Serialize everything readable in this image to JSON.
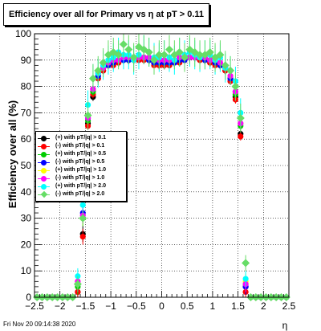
{
  "title": "Efficiency over all for Primary vs   η at pT > 0.11",
  "datestamp": "Fri Nov 20 09:14:38 2020",
  "colors": {
    "frame": "#000000",
    "grid": "#000000"
  },
  "chart_data": {
    "type": "scatter",
    "xlabel": "η",
    "ylabel": "Efficiency over all (%)",
    "xlim": [
      -2.5,
      2.5
    ],
    "ylim": [
      0,
      100
    ],
    "xticks": [
      -2.5,
      -2,
      -1.5,
      -1,
      -0.5,
      0,
      0.5,
      1,
      1.5,
      2,
      2.5
    ],
    "yticks": [
      0,
      10,
      20,
      30,
      40,
      50,
      60,
      70,
      80,
      90,
      100
    ],
    "xtick_labels": [
      "−2.5",
      "−2",
      "−1.5",
      "−1",
      "−0.5",
      "0",
      "0.5",
      "1",
      "1.5",
      "2",
      "2.5"
    ],
    "ytick_labels": [
      "0",
      "10",
      "20",
      "30",
      "40",
      "50",
      "60",
      "70",
      "80",
      "90",
      "100"
    ],
    "grid": true,
    "legend_position": "left-middle",
    "x": [
      -2.45,
      -2.35,
      -2.25,
      -2.15,
      -2.05,
      -1.95,
      -1.85,
      -1.75,
      -1.65,
      -1.55,
      -1.45,
      -1.35,
      -1.25,
      -1.15,
      -1.05,
      -0.95,
      -0.85,
      -0.75,
      -0.65,
      -0.55,
      -0.45,
      -0.35,
      -0.25,
      -0.15,
      -0.05,
      0.05,
      0.15,
      0.25,
      0.35,
      0.45,
      0.55,
      0.65,
      0.75,
      0.85,
      0.95,
      1.05,
      1.15,
      1.25,
      1.35,
      1.45,
      1.55,
      1.65,
      1.75,
      1.85,
      1.95,
      2.05,
      2.15,
      2.25,
      2.35,
      2.45
    ],
    "series": [
      {
        "name": "(+) with pT/|q| > 0.1",
        "color": "#000000",
        "marker": "circle",
        "values": [
          0,
          0,
          0,
          0,
          0,
          0,
          0,
          0,
          2,
          24,
          66,
          76,
          83,
          86,
          88,
          89,
          89,
          90,
          90,
          90,
          90,
          91,
          90,
          89,
          88,
          88,
          88,
          89,
          90,
          90,
          91,
          91,
          90,
          90,
          89,
          89,
          88,
          86,
          82,
          76,
          62,
          4,
          0,
          0,
          0,
          0,
          0,
          0,
          0,
          0
        ]
      },
      {
        "name": "(-) with pT/|q| > 0.1",
        "color": "#ff0000",
        "marker": "circle",
        "values": [
          0,
          0,
          0,
          0,
          0,
          0,
          0,
          0,
          2,
          23,
          65,
          77,
          83,
          86,
          88,
          88,
          89,
          90,
          90,
          91,
          90,
          90,
          90,
          88,
          88,
          88,
          88,
          89,
          89,
          90,
          91,
          91,
          90,
          90,
          89,
          88,
          88,
          86,
          82,
          75,
          61,
          2,
          0,
          0,
          0,
          0,
          0,
          0,
          0,
          0
        ]
      },
      {
        "name": "(+) with pT/|q| > 0.5",
        "color": "#00cc00",
        "marker": "circle",
        "values": [
          0,
          0,
          0,
          0,
          0,
          0,
          0,
          0,
          4,
          30,
          67,
          78,
          84,
          87,
          88,
          89,
          90,
          90,
          90,
          91,
          91,
          91,
          90,
          89,
          89,
          89,
          89,
          89,
          90,
          90,
          91,
          91,
          91,
          90,
          90,
          89,
          88,
          87,
          83,
          77,
          65,
          5,
          0,
          0,
          0,
          0,
          0,
          0,
          0,
          0
        ]
      },
      {
        "name": "(-) with pT/|q| > 0.5",
        "color": "#0000ff",
        "marker": "circle",
        "values": [
          0,
          0,
          0,
          0,
          0,
          0,
          0,
          0,
          5,
          32,
          68,
          79,
          84,
          87,
          88,
          89,
          90,
          90,
          90,
          91,
          91,
          91,
          90,
          89,
          89,
          89,
          89,
          89,
          90,
          90,
          91,
          91,
          91,
          90,
          90,
          89,
          88,
          87,
          83,
          78,
          66,
          4,
          0,
          0,
          0,
          0,
          0,
          0,
          0,
          0
        ]
      },
      {
        "name": "(+) with pT/|q| > 1.0",
        "color": "#ffff00",
        "marker": "circle",
        "values": [
          0,
          0,
          0,
          0,
          0,
          0,
          0,
          0,
          6,
          30,
          69,
          79,
          85,
          87,
          89,
          90,
          90,
          91,
          91,
          91,
          91,
          91,
          91,
          90,
          90,
          90,
          90,
          90,
          91,
          91,
          91,
          92,
          91,
          91,
          90,
          90,
          89,
          87,
          84,
          78,
          66,
          6,
          0,
          0,
          0,
          0,
          0,
          0,
          0,
          0
        ]
      },
      {
        "name": "(-) with pT/|q| > 1.0",
        "color": "#ff00ff",
        "marker": "circle",
        "values": [
          0,
          0,
          0,
          0,
          0,
          0,
          0,
          0,
          6,
          31,
          68,
          79,
          85,
          87,
          89,
          90,
          90,
          91,
          91,
          91,
          91,
          91,
          91,
          90,
          90,
          90,
          90,
          90,
          91,
          91,
          91,
          91,
          91,
          91,
          90,
          90,
          89,
          87,
          84,
          78,
          66,
          5,
          0,
          0,
          0,
          0,
          0,
          0,
          0,
          0
        ]
      },
      {
        "name": "(+) with pT/|q| > 2.0",
        "color": "#00ffff",
        "marker": "circle",
        "values": [
          0,
          0,
          0,
          0,
          0,
          0,
          0,
          0,
          8,
          35,
          73,
          83,
          85,
          88,
          90,
          91,
          93,
          92,
          92,
          90,
          92,
          94,
          93,
          91,
          91,
          92,
          91,
          90,
          93,
          92,
          93,
          92,
          91,
          92,
          92,
          90,
          91,
          87,
          86,
          82,
          70,
          7,
          0,
          0,
          0,
          0,
          0,
          0,
          0,
          0
        ]
      },
      {
        "name": "(-) with pT/|q| > 2.0",
        "color": "#66dd66",
        "marker": "diamond",
        "values": [
          0,
          0,
          0,
          0,
          0,
          0,
          0,
          0,
          5,
          30,
          69,
          83,
          86,
          89,
          92,
          93,
          92,
          96,
          94,
          91,
          95,
          94,
          93,
          90,
          92,
          92,
          94,
          92,
          93,
          91,
          94,
          93,
          92,
          92,
          93,
          91,
          92,
          88,
          86,
          80,
          68,
          13,
          0,
          0,
          0,
          0,
          0,
          0,
          0,
          0
        ]
      }
    ]
  }
}
